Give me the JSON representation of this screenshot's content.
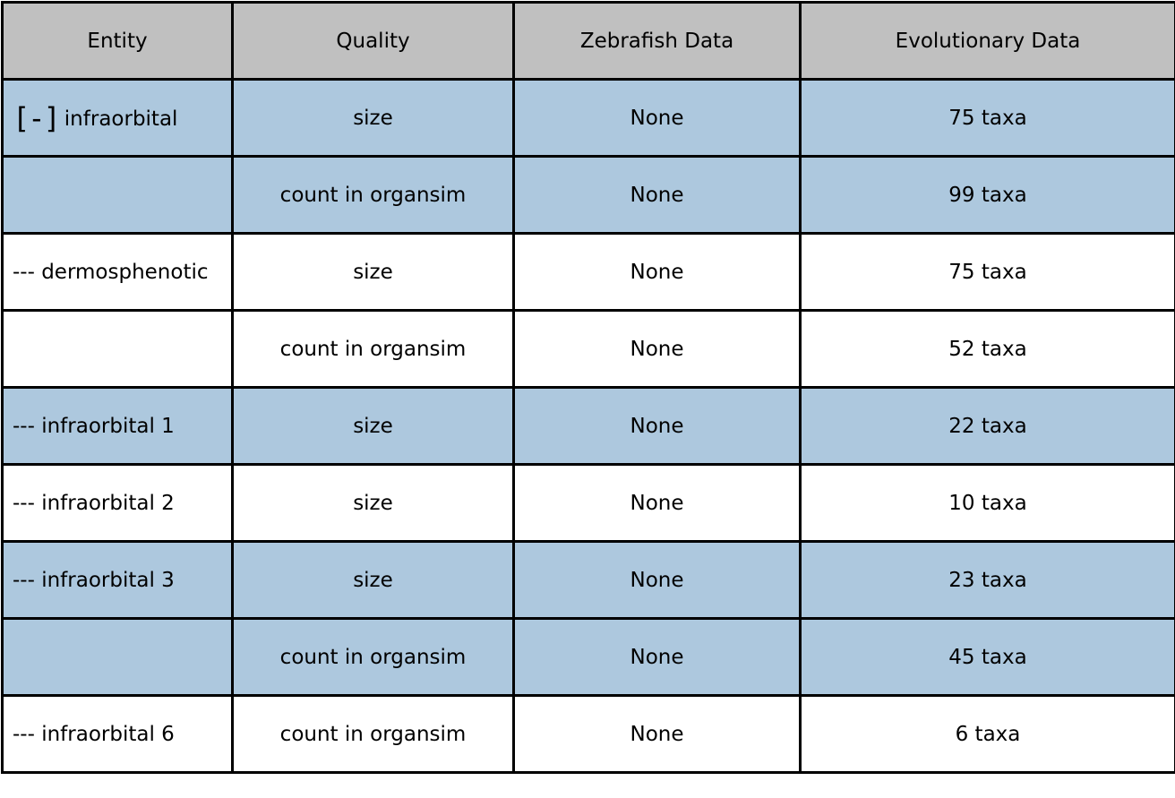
{
  "columns": {
    "entity": "Entity",
    "quality": "Quality",
    "zebrafish": "Zebrafish Data",
    "evolutionary": "Evolutionary Data"
  },
  "rows": [
    {
      "toggle": "[-]",
      "entity": "infraorbital",
      "quality": "size",
      "zebrafish": "None",
      "evolutionary": "75 taxa",
      "shade": "blue"
    },
    {
      "entity": "",
      "quality": "count in organsim",
      "zebrafish": "None",
      "evolutionary": "99 taxa",
      "shade": "blue"
    },
    {
      "entity": "--- dermosphenotic",
      "quality": "size",
      "zebrafish": "None",
      "evolutionary": "75 taxa",
      "shade": "white"
    },
    {
      "entity": "",
      "quality": "count in organsim",
      "zebrafish": "None",
      "evolutionary": "52 taxa",
      "shade": "white"
    },
    {
      "entity": "--- infraorbital 1",
      "quality": "size",
      "zebrafish": "None",
      "evolutionary": "22 taxa",
      "shade": "blue"
    },
    {
      "entity": "--- infraorbital 2",
      "quality": "size",
      "zebrafish": "None",
      "evolutionary": "10 taxa",
      "shade": "white"
    },
    {
      "entity": "--- infraorbital 3",
      "quality": "size",
      "zebrafish": "None",
      "evolutionary": "23 taxa",
      "shade": "blue"
    },
    {
      "entity": "",
      "quality": "count in organsim",
      "zebrafish": "None",
      "evolutionary": "45 taxa",
      "shade": "blue"
    },
    {
      "entity": "--- infraorbital 6",
      "quality": "count in organsim",
      "zebrafish": "None",
      "evolutionary": "6 taxa",
      "shade": "white"
    }
  ],
  "colors": {
    "header_bg": "#c0c0c0",
    "row_blue": "#adc8de",
    "row_white": "#ffffff",
    "border": "#000000"
  }
}
